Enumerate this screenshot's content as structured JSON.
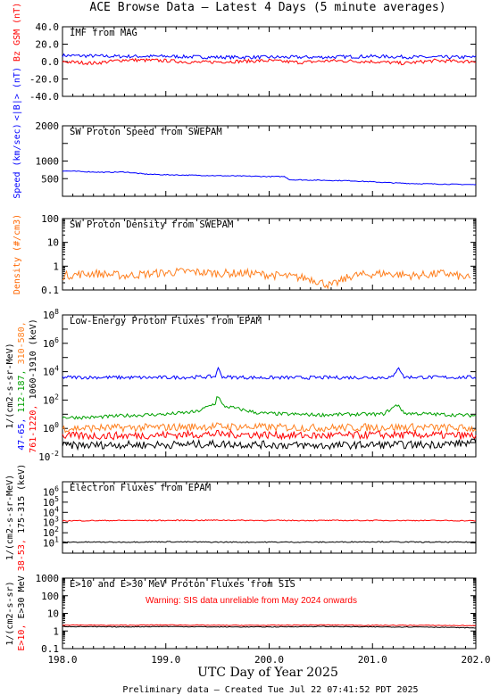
{
  "chart_data": {
    "title": "ACE Browse Data – Latest 4 Days (5 minute averages)",
    "xlabel": "UTC Day of Year 2025",
    "footer": "Preliminary data – Created Tue Jul 22 07:41:52 PDT 2025",
    "xlim": [
      198.0,
      202.0
    ],
    "xticks": [
      "198.0",
      "199.0",
      "200.0",
      "201.0",
      "202.0"
    ],
    "panels": [
      {
        "type": "line",
        "title": "IMF from MAG",
        "ylabel_parts": [
          {
            "text": "<|B|> (nT)",
            "color": "#0000ff"
          },
          {
            "text": "Bz GSM (nT)",
            "color": "#ff0000"
          }
        ],
        "ylim": [
          -40,
          40
        ],
        "yscale": "linear",
        "yticks": [
          "40.0",
          "20.0",
          "0.0",
          "-20.0",
          "-40.0"
        ],
        "series": [
          {
            "color": "#0000ff",
            "x": [
              198.0,
              198.5,
              199.0,
              199.5,
              200.0,
              200.5,
              201.0,
              201.5,
              202.0
            ],
            "y": [
              7,
              6,
              6,
              5,
              5,
              5,
              6,
              5,
              5
            ]
          },
          {
            "color": "#ff0000",
            "x": [
              198.0,
              198.3,
              198.6,
              199.0,
              199.3,
              199.6,
              200.0,
              200.3,
              200.6,
              201.0,
              201.3,
              201.6,
              202.0
            ],
            "y": [
              0,
              -2,
              2,
              1,
              -1,
              0,
              1,
              -1,
              1,
              0,
              -2,
              1,
              0
            ]
          }
        ]
      },
      {
        "type": "line",
        "title": "SW Proton Speed from SWEPAM",
        "ylabel_parts": [
          {
            "text": "Speed (km/sec)",
            "color": "#0000ff"
          }
        ],
        "ylim": [
          0,
          2000
        ],
        "yscale": "linear",
        "yticks": [
          "2000",
          "1000",
          "500"
        ],
        "series": [
          {
            "color": "#0000ff",
            "x": [
              198.0,
              198.2,
              198.4,
              198.6,
              198.8,
              199.0,
              199.2,
              199.4,
              199.6,
              199.8,
              200.0,
              200.15,
              200.2,
              200.4,
              200.6,
              200.8,
              201.0,
              201.2,
              201.4,
              201.6,
              201.8,
              202.0
            ],
            "y": [
              720,
              700,
              680,
              690,
              630,
              610,
              600,
              590,
              580,
              570,
              560,
              560,
              470,
              460,
              450,
              440,
              410,
              380,
              360,
              350,
              340,
              330
            ]
          }
        ]
      },
      {
        "type": "line",
        "title": "SW Proton Density from SWEPAM",
        "ylabel_parts": [
          {
            "text": "Density (#/cm3)",
            "color": "#ff6600"
          }
        ],
        "ylim": [
          0.1,
          100
        ],
        "yscale": "log",
        "yticks": [
          "100",
          "10",
          "1",
          "0.1"
        ],
        "series": [
          {
            "color": "#ff7f1e",
            "x": [
              198.0,
              198.3,
              198.6,
              198.9,
              199.2,
              199.5,
              199.8,
              200.1,
              200.4,
              200.6,
              200.8,
              201.1,
              201.4,
              201.7,
              201.95
            ],
            "y": [
              0.4,
              0.5,
              0.4,
              0.5,
              0.6,
              0.5,
              0.5,
              0.4,
              0.3,
              0.15,
              0.4,
              0.5,
              0.4,
              0.5,
              0.3
            ]
          }
        ]
      },
      {
        "type": "line",
        "title": "Low-Energy Proton Fluxes from EPAM",
        "ylabel_parts": [
          {
            "text": "47-65,",
            "color": "#0000ff"
          },
          {
            "text": "112-187,",
            "color": "#00a000"
          },
          {
            "text": "310-580,",
            "color": "#ff7f1e"
          },
          {
            "text": "761-1220,",
            "color": "#ff0000"
          },
          {
            "text": "1060-1910 (keV)",
            "color": "#000000"
          },
          {
            "text": "1/(cm2-s-sr-MeV)",
            "color": "#000000"
          }
        ],
        "ylim": [
          0.01,
          100000000
        ],
        "yscale": "log",
        "yticks": [
          "10^8",
          "10^6",
          "10^4",
          "10^2",
          "10^0",
          "10^-2"
        ],
        "series": [
          {
            "color": "#0000ff",
            "x": [
              198.0,
              198.35,
              198.8,
              199.2,
              199.48,
              199.5,
              199.55,
              199.9,
              200.4,
              200.8,
              201.2,
              201.25,
              201.3,
              201.6,
              202.0
            ],
            "y": [
              4000,
              4000,
              3800,
              4000,
              4500,
              20000,
              4200,
              3800,
              3800,
              3900,
              4000,
              25000,
              4200,
              4000,
              4000
            ]
          },
          {
            "color": "#00a000",
            "x": [
              198.0,
              198.3,
              198.6,
              199.0,
              199.3,
              199.48,
              199.5,
              199.55,
              199.9,
              200.2,
              200.5,
              200.8,
              201.1,
              201.25,
              201.3,
              201.6,
              202.0
            ],
            "y": [
              6,
              6,
              8,
              10,
              15,
              60,
              250,
              40,
              12,
              10,
              9,
              10,
              10,
              50,
              12,
              10,
              8
            ]
          },
          {
            "color": "#ff7f1e",
            "x": [
              198.0,
              198.5,
              199.0,
              199.5,
              200.0,
              200.5,
              201.0,
              201.5,
              202.0
            ],
            "y": [
              1.0,
              1.1,
              1.2,
              1.4,
              1.2,
              1.1,
              1.2,
              1.2,
              1.0
            ]
          },
          {
            "color": "#ff0000",
            "x": [
              198.0,
              198.5,
              199.0,
              199.5,
              200.0,
              200.5,
              201.0,
              201.5,
              202.0
            ],
            "y": [
              0.3,
              0.3,
              0.35,
              0.4,
              0.35,
              0.3,
              0.35,
              0.35,
              0.3
            ]
          },
          {
            "color": "#000000",
            "x": [
              198.0,
              198.5,
              199.0,
              199.5,
              200.0,
              200.5,
              201.0,
              201.5,
              202.0
            ],
            "y": [
              0.06,
              0.07,
              0.07,
              0.08,
              0.07,
              0.06,
              0.07,
              0.07,
              0.1
            ]
          }
        ]
      },
      {
        "type": "line",
        "title": "Electron Fluxes from EPAM",
        "ylabel_parts": [
          {
            "text": "38-53,",
            "color": "#ff0000"
          },
          {
            "text": "175-315 (keV)",
            "color": "#000000"
          },
          {
            "text": "1/(cm2-s-sr-MeV)",
            "color": "#000000"
          }
        ],
        "ylim": [
          1,
          10000000
        ],
        "yscale": "log",
        "yticks": [
          "10^6",
          "10^5",
          "10^4",
          "10^3",
          "10^2",
          "10^1"
        ],
        "series": [
          {
            "color": "#ff0000",
            "x": [
              198.0,
              198.5,
              199.0,
              199.5,
              200.0,
              200.5,
              201.0,
              201.5,
              202.0
            ],
            "y": [
              1500,
              1600,
              1600,
              1700,
              1600,
              1600,
              1600,
              1600,
              1500
            ]
          },
          {
            "color": "#000000",
            "x": [
              198.0,
              198.5,
              199.0,
              199.5,
              200.0,
              200.5,
              201.0,
              201.5,
              202.0
            ],
            "y": [
              12,
              12,
              13,
              12,
              12,
              12,
              13,
              12,
              12
            ]
          }
        ]
      },
      {
        "type": "line",
        "title": "E>10 and E>30 MeV Proton Fluxes from SIS",
        "annotation": "Warning: SIS data unreliable from May 2024 onwards",
        "ylabel_parts": [
          {
            "text": "E>10,",
            "color": "#ff0000"
          },
          {
            "text": "E>30 MeV",
            "color": "#000000"
          },
          {
            "text": "1/(cm2-s-sr)",
            "color": "#000000"
          }
        ],
        "ylim": [
          0.1,
          1000
        ],
        "yscale": "log",
        "yticks": [
          "1000",
          "100",
          "10",
          "1",
          "0.1"
        ],
        "series": [
          {
            "color": "#ff0000",
            "x": [
              198.0,
              198.5,
              199.0,
              199.5,
              200.0,
              200.5,
              201.0,
              201.5,
              202.0
            ],
            "y": [
              2.2,
              2.1,
              2.2,
              2.1,
              2.1,
              2.2,
              2.1,
              2.1,
              2.0
            ]
          },
          {
            "color": "#000000",
            "x": [
              198.0,
              198.5,
              199.0,
              199.5,
              200.0,
              200.5,
              201.0,
              201.5,
              202.0
            ],
            "y": [
              1.8,
              1.7,
              1.8,
              1.7,
              1.7,
              1.8,
              1.7,
              1.7,
              1.5
            ]
          }
        ]
      }
    ]
  }
}
